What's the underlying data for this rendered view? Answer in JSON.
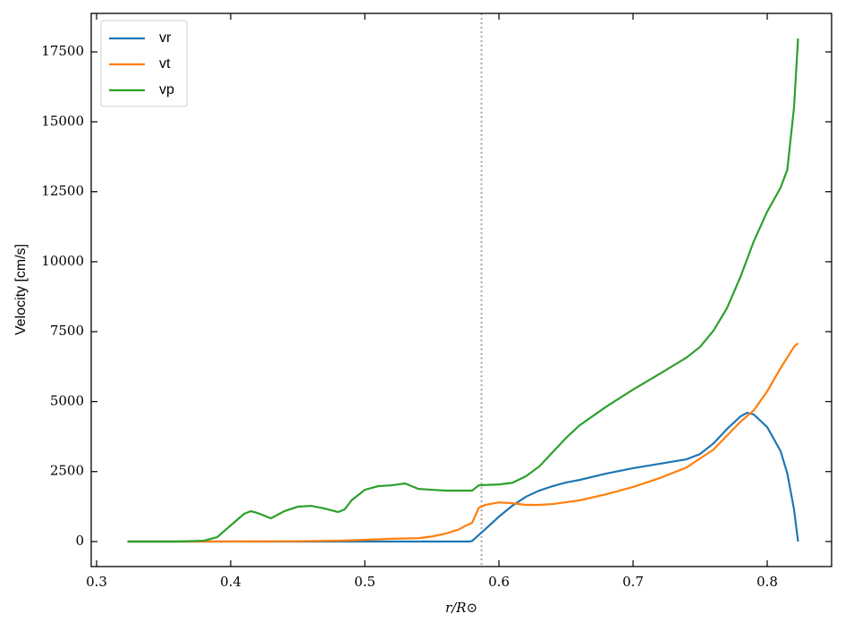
{
  "chart_data": {
    "type": "line",
    "x_label": "r/R⊙",
    "y_label": "Velocity [cm/s]",
    "xlim": [
      0.296,
      0.848
    ],
    "ylim": [
      -894,
      18875
    ],
    "xticks": [
      0.3,
      0.4,
      0.5,
      0.6,
      0.7,
      0.8
    ],
    "yticks": [
      0,
      2500,
      5000,
      7500,
      10000,
      12500,
      15000,
      17500
    ],
    "vlines": [
      0.587
    ],
    "legend": "upper left",
    "series": [
      {
        "name": "vr",
        "color": "#1f77b4",
        "x": [
          0.323,
          0.4,
          0.5,
          0.57,
          0.578,
          0.58,
          0.59,
          0.6,
          0.61,
          0.62,
          0.63,
          0.64,
          0.65,
          0.66,
          0.68,
          0.7,
          0.72,
          0.74,
          0.75,
          0.76,
          0.77,
          0.78,
          0.785,
          0.79,
          0.8,
          0.81,
          0.815,
          0.82,
          0.823
        ],
        "values": [
          0,
          0,
          0,
          0,
          0,
          20,
          450,
          890,
          1280,
          1600,
          1820,
          1980,
          2110,
          2200,
          2430,
          2620,
          2780,
          2940,
          3130,
          3510,
          4020,
          4470,
          4600,
          4540,
          4090,
          3230,
          2430,
          1150,
          0
        ]
      },
      {
        "name": "vt",
        "color": "#ff7f0e",
        "x": [
          0.323,
          0.38,
          0.4,
          0.45,
          0.48,
          0.5,
          0.52,
          0.54,
          0.55,
          0.56,
          0.57,
          0.575,
          0.58,
          0.585,
          0.59,
          0.6,
          0.61,
          0.62,
          0.63,
          0.64,
          0.66,
          0.68,
          0.7,
          0.72,
          0.74,
          0.76,
          0.78,
          0.79,
          0.8,
          0.81,
          0.82,
          0.823
        ],
        "values": [
          0,
          0,
          5,
          10,
          30,
          60,
          100,
          120,
          180,
          280,
          430,
          560,
          670,
          1210,
          1310,
          1400,
          1370,
          1310,
          1310,
          1340,
          1470,
          1690,
          1950,
          2270,
          2650,
          3290,
          4280,
          4690,
          5370,
          6200,
          6960,
          7090
        ]
      },
      {
        "name": "vp",
        "color": "#2ca02c",
        "x": [
          0.323,
          0.36,
          0.38,
          0.39,
          0.4,
          0.41,
          0.415,
          0.42,
          0.43,
          0.44,
          0.45,
          0.46,
          0.47,
          0.48,
          0.485,
          0.49,
          0.5,
          0.51,
          0.52,
          0.53,
          0.54,
          0.55,
          0.56,
          0.57,
          0.58,
          0.585,
          0.6,
          0.61,
          0.62,
          0.63,
          0.64,
          0.65,
          0.66,
          0.68,
          0.7,
          0.72,
          0.74,
          0.75,
          0.76,
          0.77,
          0.78,
          0.79,
          0.8,
          0.81,
          0.815,
          0.82,
          0.823
        ],
        "values": [
          0,
          0,
          30,
          160,
          575,
          990,
          1085,
          1020,
          830,
          1085,
          1245,
          1275,
          1180,
          1055,
          1150,
          1470,
          1850,
          1980,
          2010,
          2075,
          1880,
          1850,
          1820,
          1820,
          1820,
          2010,
          2040,
          2100,
          2330,
          2680,
          3190,
          3700,
          4150,
          4820,
          5430,
          6000,
          6580,
          6960,
          7540,
          8340,
          9450,
          10730,
          11790,
          12650,
          13290,
          15520,
          17980
        ]
      }
    ]
  }
}
